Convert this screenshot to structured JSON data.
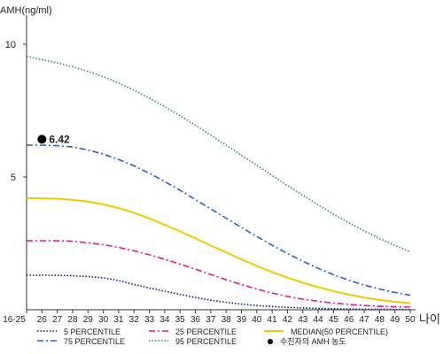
{
  "chart_data": {
    "type": "line",
    "ylabel": "AMH(ng/ml)",
    "xlabel": "나이",
    "ylim": [
      0,
      11.1
    ],
    "yticks": [
      5,
      10
    ],
    "categories": [
      "16-25",
      "26",
      "27",
      "28",
      "29",
      "30",
      "31",
      "32",
      "33",
      "34",
      "35",
      "36",
      "37",
      "38",
      "39",
      "40",
      "41",
      "42",
      "43",
      "44",
      "45",
      "46",
      "47",
      "48",
      "49",
      "50"
    ],
    "grid": false,
    "legend_position": "bottom",
    "series": [
      {
        "name": "5 PERCENTILE",
        "color": "#0a1a7a",
        "dash": "dotted",
        "values": [
          1.3,
          1.3,
          1.3,
          1.28,
          1.25,
          1.2,
          1.1,
          0.95,
          0.82,
          0.7,
          0.58,
          0.46,
          0.36,
          0.28,
          0.21,
          0.16,
          0.12,
          0.09,
          0.07,
          0.05,
          0.04,
          0.03,
          0.02,
          0.02,
          0.01,
          0.01
        ]
      },
      {
        "name": "25 PERCENTILE",
        "color": "#e0168a",
        "dash": "dashdot",
        "values": [
          2.6,
          2.6,
          2.6,
          2.58,
          2.52,
          2.45,
          2.35,
          2.22,
          2.07,
          1.9,
          1.72,
          1.53,
          1.33,
          1.13,
          0.95,
          0.78,
          0.63,
          0.5,
          0.4,
          0.32,
          0.25,
          0.2,
          0.16,
          0.13,
          0.11,
          0.1
        ]
      },
      {
        "name": "MEDIAN(50 PERCENTILE)",
        "color": "#f0c800",
        "dash": "solid",
        "values": [
          4.2,
          4.2,
          4.18,
          4.14,
          4.07,
          3.97,
          3.83,
          3.65,
          3.44,
          3.2,
          2.95,
          2.69,
          2.42,
          2.16,
          1.9,
          1.65,
          1.42,
          1.21,
          1.02,
          0.85,
          0.7,
          0.57,
          0.46,
          0.37,
          0.3,
          0.25
        ]
      },
      {
        "name": "75 PERCENTILE",
        "color": "#2a5fc8",
        "dash": "dashdot",
        "values": [
          6.2,
          6.2,
          6.18,
          6.13,
          6.02,
          5.86,
          5.66,
          5.42,
          5.14,
          4.83,
          4.5,
          4.15,
          3.8,
          3.45,
          3.1,
          2.76,
          2.43,
          2.12,
          1.83,
          1.56,
          1.32,
          1.11,
          0.93,
          0.78,
          0.65,
          0.55
        ]
      },
      {
        "name": "95 PERCENTILE",
        "color": "#3a8a5a",
        "dash": "dotted",
        "values": [
          9.55,
          9.42,
          9.3,
          9.15,
          8.98,
          8.78,
          8.54,
          8.27,
          7.97,
          7.65,
          7.31,
          6.95,
          6.58,
          6.2,
          5.82,
          5.44,
          5.06,
          4.68,
          4.31,
          3.95,
          3.6,
          3.28,
          2.97,
          2.68,
          2.42,
          2.18
        ]
      }
    ],
    "patient": {
      "legend": "수진자의 AMH 농도",
      "category": "26",
      "value": 6.42,
      "label": "6.42"
    }
  }
}
